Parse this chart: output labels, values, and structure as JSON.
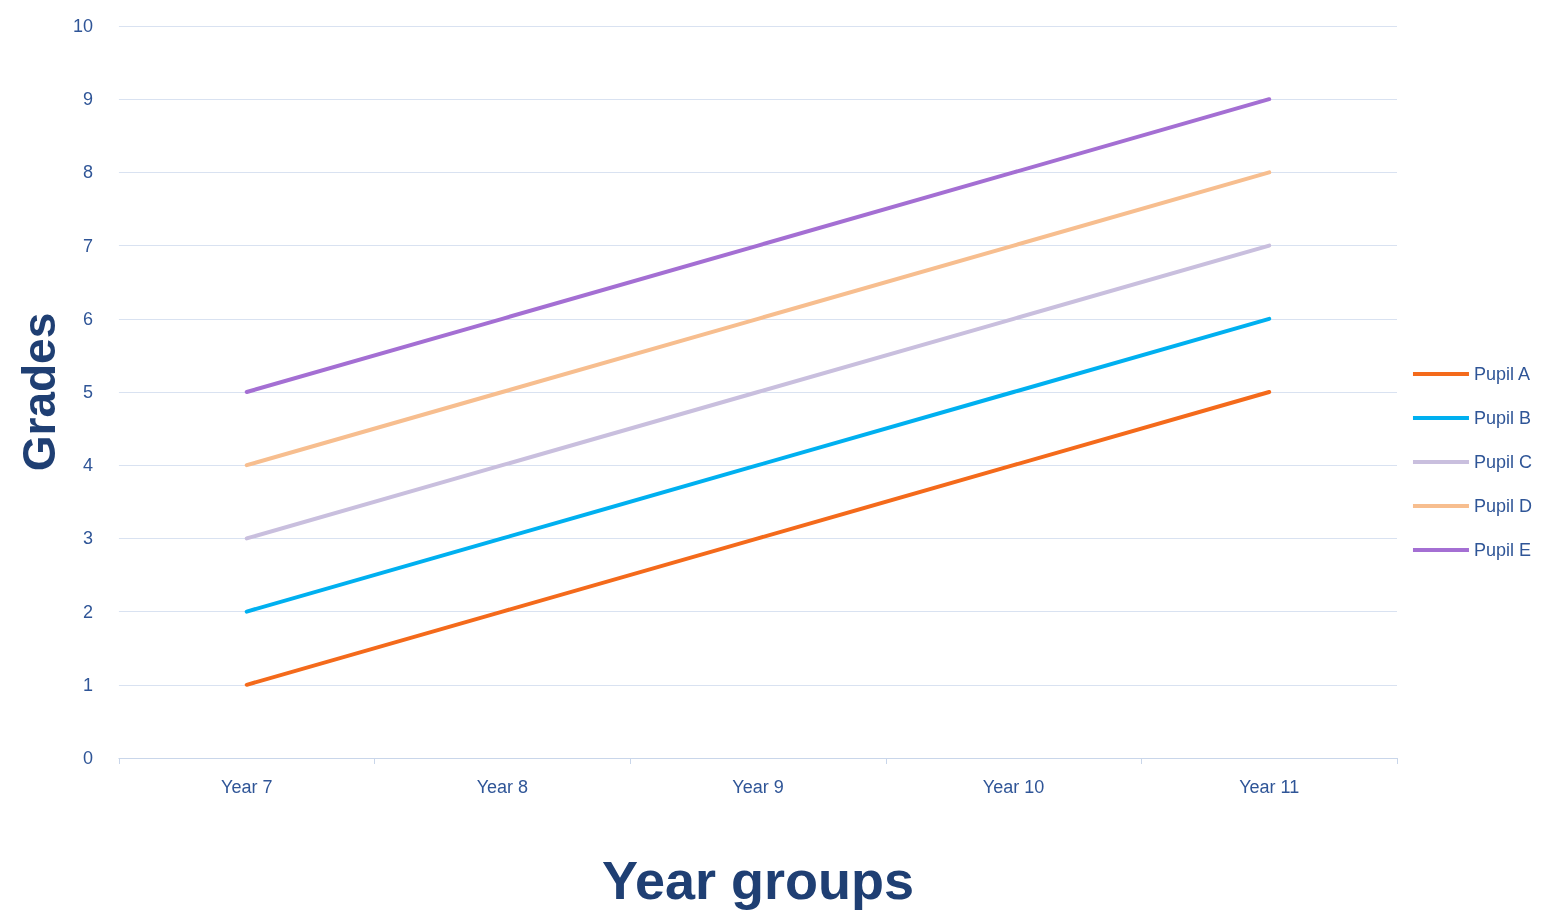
{
  "chart_data": {
    "type": "line",
    "xlabel": "Year groups",
    "ylabel": "Grades",
    "categories": [
      "Year 7",
      "Year 8",
      "Year 9",
      "Year 10",
      "Year 11"
    ],
    "series": [
      {
        "name": "Pupil A",
        "color": "#f46a1b",
        "values": [
          1,
          2,
          3,
          4,
          5
        ]
      },
      {
        "name": "Pupil B",
        "color": "#00b0f0",
        "values": [
          2,
          3,
          4,
          5,
          6
        ]
      },
      {
        "name": "Pupil C",
        "color": "#c9bfde",
        "values": [
          3,
          4,
          5,
          6,
          7
        ]
      },
      {
        "name": "Pupil D",
        "color": "#f7be8f",
        "values": [
          4,
          5,
          6,
          7,
          8
        ]
      },
      {
        "name": "Pupil E",
        "color": "#a46fd3",
        "values": [
          5,
          6,
          7,
          8,
          9
        ]
      }
    ],
    "ylim": [
      0,
      10
    ],
    "yticks": [
      0,
      1,
      2,
      3,
      4,
      5,
      6,
      7,
      8,
      9,
      10
    ],
    "grid": "y",
    "legend": "right",
    "marker": "none",
    "line_style": "solid"
  }
}
